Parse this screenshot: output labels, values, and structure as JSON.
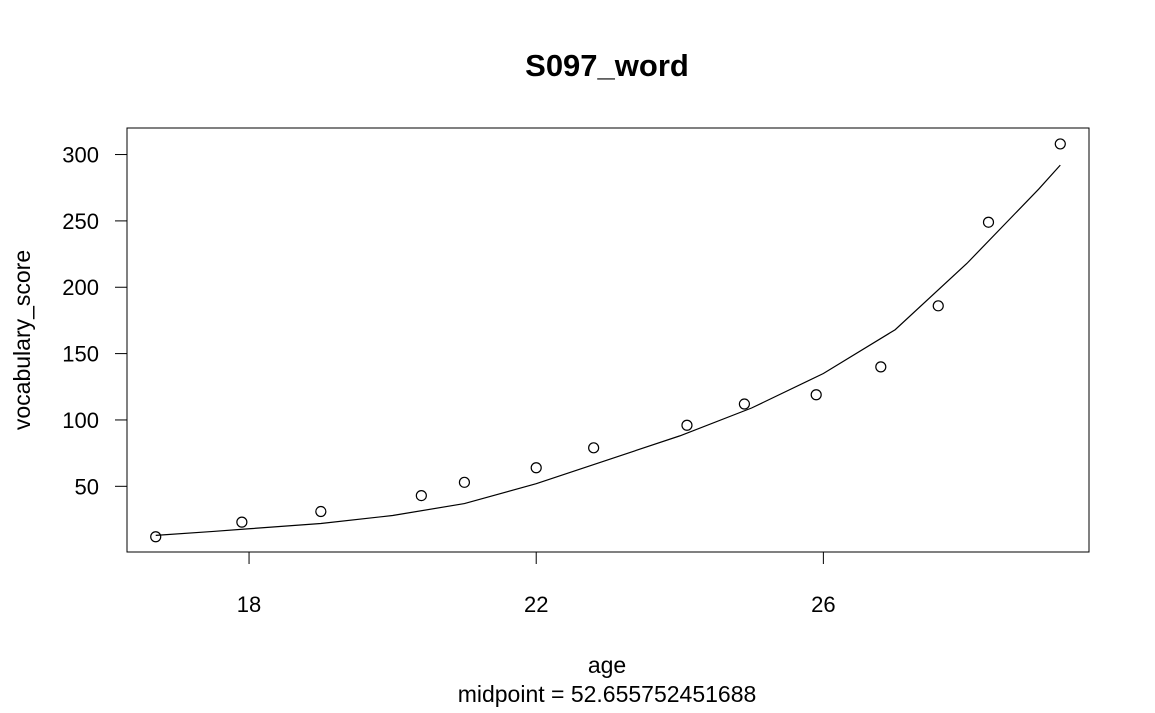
{
  "chart_data": {
    "type": "scatter",
    "title": "S097_word",
    "xlabel": "age",
    "ylabel": "vocabulary_score",
    "subtitle": "midpoint = 52.655752451688",
    "xlim": [
      16.3,
      29.7
    ],
    "ylim": [
      0.5,
      320
    ],
    "x_ticks": [
      18,
      22,
      26
    ],
    "y_ticks": [
      50,
      100,
      150,
      200,
      250,
      300
    ],
    "grid": false,
    "series": [
      {
        "type": "points",
        "x": [
          16.7,
          17.9,
          19.0,
          20.4,
          21.0,
          22.0,
          22.8,
          24.1,
          24.9,
          25.9,
          26.8,
          27.6,
          28.3,
          29.3
        ],
        "y": [
          12,
          23,
          31,
          43,
          53,
          64,
          79,
          96,
          112,
          119,
          140,
          186,
          249,
          308
        ]
      },
      {
        "type": "curve",
        "x": [
          16.7,
          17.5,
          18.0,
          19.0,
          20.0,
          21.0,
          22.0,
          23.0,
          24.0,
          25.0,
          26.0,
          27.0,
          28.0,
          29.0,
          29.3
        ],
        "y": [
          13,
          16,
          18,
          22,
          28,
          37,
          52,
          70,
          88,
          109,
          135,
          168,
          218,
          274,
          292
        ]
      }
    ]
  }
}
